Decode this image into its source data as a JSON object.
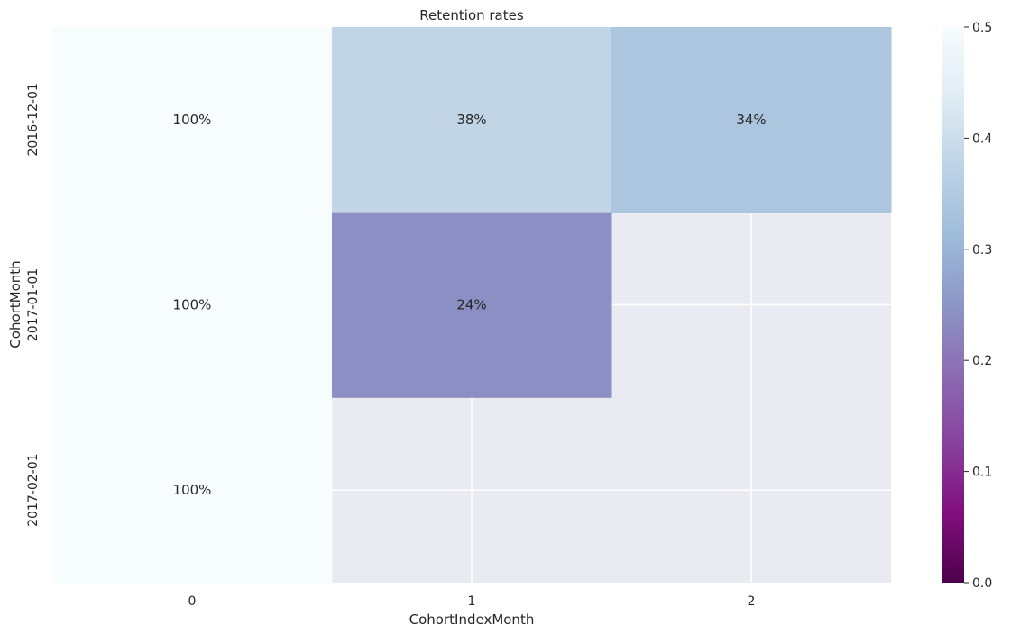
{
  "chart_data": {
    "type": "heatmap",
    "title": "Retention rates",
    "xlabel": "CohortIndexMonth",
    "ylabel": "CohortMonth",
    "x_categories": [
      "0",
      "1",
      "2"
    ],
    "y_categories": [
      "2016-12-01",
      "2017-01-01",
      "2017-02-01"
    ],
    "values": [
      [
        1.0,
        0.38,
        0.34
      ],
      [
        1.0,
        0.24,
        null
      ],
      [
        1.0,
        null,
        null
      ]
    ],
    "annotations": [
      [
        "100%",
        "38%",
        "34%"
      ],
      [
        "100%",
        "24%",
        ""
      ],
      [
        "100%",
        "",
        ""
      ]
    ],
    "colormap": "BuPu_r",
    "vmin": 0.0,
    "vmax": 0.5,
    "colorbar_ticks": [
      "0.0",
      "0.1",
      "0.2",
      "0.3",
      "0.4",
      "0.5"
    ],
    "missing_color": "#eaeaf2",
    "grid": true,
    "colors": {
      "anno_dark": "#262626",
      "anno_light": "#ffffff",
      "grid_line": "#ffffff"
    }
  }
}
